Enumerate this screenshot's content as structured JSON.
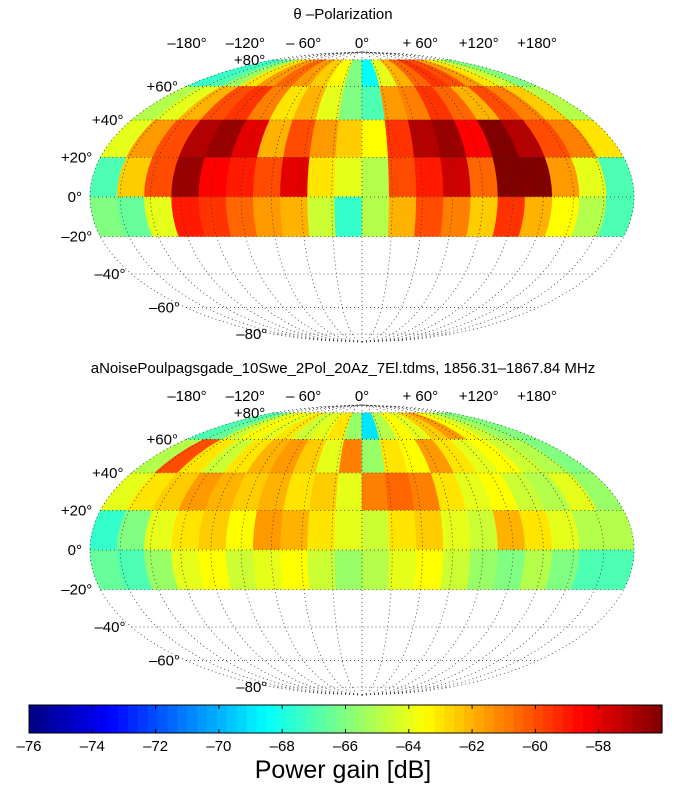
{
  "chart_data": [
    {
      "type": "heatmap",
      "projection": "mollweide",
      "title": "θ –Polarization",
      "lon_ticks": [
        "–180°",
        "–120°",
        "– 60°",
        "0°",
        "+ 60°",
        "+120°",
        "+180°"
      ],
      "lat_ticks_upper": [
        "+80°",
        "+60°",
        "+40°",
        "+20°",
        "0°",
        "–20°"
      ],
      "lat_ticks_lower": [
        "–40°",
        "–60°",
        "–80°"
      ],
      "elevation_rows": [
        70,
        50,
        30,
        10,
        -10
      ],
      "azimuth_columns": 20,
      "values_db": [
        [
          -67.5,
          -67.0,
          -65.5,
          -63.0,
          -61.5,
          -60.5,
          -61.5,
          -62.5,
          -63.5,
          -66.0,
          -68.5,
          -64.0,
          -62.0,
          -60.5,
          -59.5,
          -60.0,
          -61.5,
          -63.0,
          -64.5,
          -66.0
        ],
        [
          -65.0,
          -64.0,
          -62.0,
          -60.0,
          -59.5,
          -61.0,
          -63.0,
          -62.0,
          -64.0,
          -66.0,
          -67.0,
          -61.5,
          -61.0,
          -59.5,
          -60.5,
          -62.0,
          -60.0,
          -61.0,
          -62.5,
          -65.0
        ],
        [
          -64.0,
          -61.5,
          -60.0,
          -57.0,
          -56.5,
          -58.0,
          -62.0,
          -60.0,
          -61.5,
          -62.5,
          -63.5,
          -59.5,
          -57.0,
          -56.5,
          -58.5,
          -56.0,
          -57.0,
          -60.0,
          -61.0,
          -63.0
        ],
        [
          -67.0,
          -62.5,
          -60.0,
          -56.5,
          -58.5,
          -59.0,
          -60.0,
          -58.0,
          -63.0,
          -64.0,
          -65.0,
          -60.0,
          -59.0,
          -57.5,
          -60.5,
          -56.0,
          -56.0,
          -61.5,
          -64.0,
          -67.0
        ],
        [
          -66.0,
          -66.5,
          -64.0,
          -59.0,
          -59.5,
          -60.5,
          -61.5,
          -62.0,
          -64.5,
          -67.5,
          -65.0,
          -62.0,
          -60.0,
          -61.0,
          -62.5,
          -59.5,
          -62.0,
          -63.5,
          -65.0,
          -67.0
        ]
      ]
    },
    {
      "type": "heatmap",
      "projection": "mollweide",
      "title": "aNoisePoulpagsgade_10Swe_2Pol_20Az_7El.tdms, 1856.31–1867.84 MHz",
      "lon_ticks": [
        "–180°",
        "–120°",
        "– 60°",
        "0°",
        "+ 60°",
        "+120°",
        "+180°"
      ],
      "lat_ticks_upper": [
        "+80°",
        "+60°",
        "+40°",
        "+20°",
        "0°",
        "–20°"
      ],
      "lat_ticks_lower": [
        "–40°",
        "–60°",
        "–80°"
      ],
      "elevation_rows": [
        70,
        50,
        30,
        10,
        -10
      ],
      "azimuth_columns": 20,
      "values_db": [
        [
          -67.0,
          -66.5,
          -64.5,
          -63.5,
          -64.0,
          -63.0,
          -64.5,
          -64.0,
          -63.0,
          -65.5,
          -69.0,
          -65.0,
          -63.5,
          -64.0,
          -62.5,
          -61.5,
          -63.5,
          -64.5,
          -65.5,
          -66.0
        ],
        [
          -65.0,
          -60.0,
          -63.0,
          -64.5,
          -63.0,
          -62.0,
          -61.5,
          -62.5,
          -64.0,
          -61.0,
          -65.5,
          -63.0,
          -63.5,
          -61.5,
          -63.0,
          -64.0,
          -63.5,
          -64.5,
          -65.0,
          -66.0
        ],
        [
          -64.0,
          -63.0,
          -62.5,
          -61.5,
          -62.0,
          -62.5,
          -62.0,
          -63.0,
          -62.5,
          -64.0,
          -61.0,
          -60.5,
          -61.0,
          -63.0,
          -64.0,
          -63.5,
          -64.5,
          -65.0,
          -64.0,
          -65.5
        ],
        [
          -67.5,
          -66.0,
          -64.0,
          -63.0,
          -62.5,
          -63.5,
          -61.5,
          -62.0,
          -63.0,
          -64.0,
          -64.5,
          -63.0,
          -62.5,
          -64.0,
          -64.5,
          -62.0,
          -63.0,
          -64.0,
          -65.0,
          -65.0
        ],
        [
          -66.5,
          -67.0,
          -65.5,
          -64.0,
          -63.5,
          -64.5,
          -64.0,
          -63.5,
          -64.5,
          -65.5,
          -65.0,
          -64.0,
          -63.5,
          -64.5,
          -65.5,
          -66.0,
          -65.0,
          -66.0,
          -67.0,
          -67.0
        ]
      ]
    }
  ],
  "colorbar": {
    "label": "Power gain [dB]",
    "range": [
      -76,
      -56
    ],
    "ticks": [
      "–76",
      "–74",
      "–72",
      "–70",
      "–68",
      "–66",
      "–64",
      "–62",
      "–60",
      "–58"
    ],
    "tick_values": [
      -76,
      -74,
      -72,
      -70,
      -68,
      -66,
      -64,
      -62,
      -60,
      -58
    ]
  }
}
